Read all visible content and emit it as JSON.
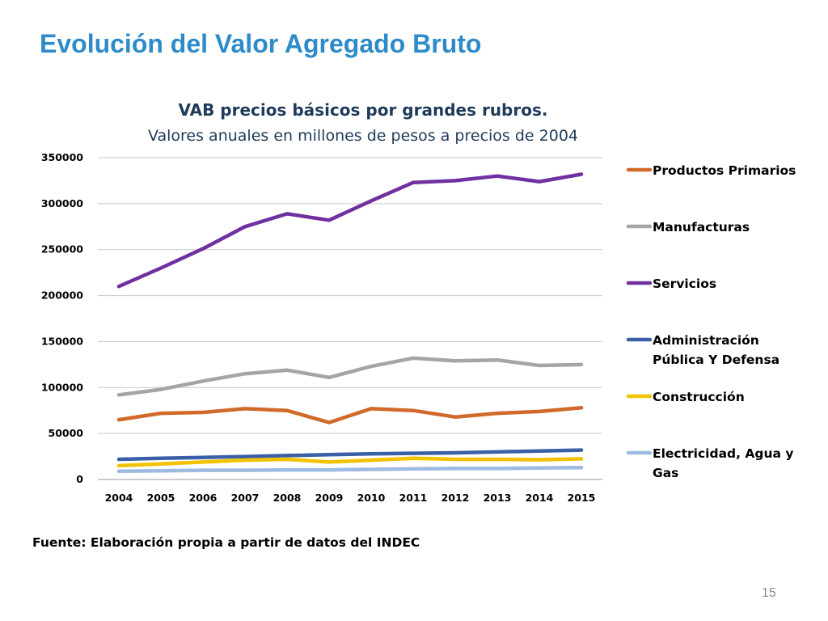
{
  "slide": {
    "title": "Evolución del Valor Agregado Bruto",
    "source": "Fuente: Elaboración propia a partir de datos del INDEC",
    "page_number": "15"
  },
  "chart_data": {
    "type": "line",
    "title": "VAB precios básicos por grandes rubros.",
    "subtitle": "Valores anuales en millones de pesos a precios de 2004",
    "xlabel": "",
    "ylabel": "",
    "ylim": [
      0,
      350000
    ],
    "yticks": [
      0,
      50000,
      100000,
      150000,
      200000,
      250000,
      300000,
      350000
    ],
    "grid": true,
    "legend_position": "right",
    "categories": [
      "2004",
      "2005",
      "2006",
      "2007",
      "2008",
      "2009",
      "2010",
      "2011",
      "2012",
      "2013",
      "2014",
      "2015"
    ],
    "series": [
      {
        "name": "Productos Primarios",
        "legend_lines": [
          "Productos Primarios"
        ],
        "color": "#d0692a",
        "values": [
          65000,
          72000,
          73000,
          77000,
          75000,
          62000,
          77000,
          75000,
          68000,
          72000,
          74000,
          78000
        ]
      },
      {
        "name": "Manufacturas",
        "legend_lines": [
          "Manufacturas"
        ],
        "color": "#a5a5a5",
        "values": [
          92000,
          98000,
          107000,
          115000,
          119000,
          111000,
          123000,
          132000,
          129000,
          130000,
          124000,
          125000
        ]
      },
      {
        "name": "Servicios",
        "legend_lines": [
          "Servicios"
        ],
        "color": "#7030a0",
        "values": [
          210000,
          230000,
          251000,
          275000,
          289000,
          282000,
          303000,
          323000,
          325000,
          330000,
          324000,
          332000
        ]
      },
      {
        "name": "Administración Pública Y Defensa",
        "legend_lines": [
          "Administración",
          "Pública Y Defensa"
        ],
        "color": "#3a5fa6",
        "values": [
          22000,
          23000,
          24000,
          25000,
          26000,
          27000,
          28000,
          28500,
          29000,
          30000,
          31000,
          32000
        ]
      },
      {
        "name": "Construcción",
        "legend_lines": [
          "Construcción"
        ],
        "color": "#f2c200",
        "values": [
          15000,
          17000,
          19000,
          21000,
          22000,
          19000,
          21000,
          23000,
          22000,
          22000,
          21500,
          22500
        ]
      },
      {
        "name": "Electricidad, Agua y Gas",
        "legend_lines": [
          "Electricidad, Agua y",
          "Gas"
        ],
        "color": "#9dbbe0",
        "values": [
          9000,
          9500,
          10000,
          10000,
          10500,
          10500,
          11000,
          11500,
          12000,
          12000,
          12500,
          13000
        ]
      }
    ]
  }
}
